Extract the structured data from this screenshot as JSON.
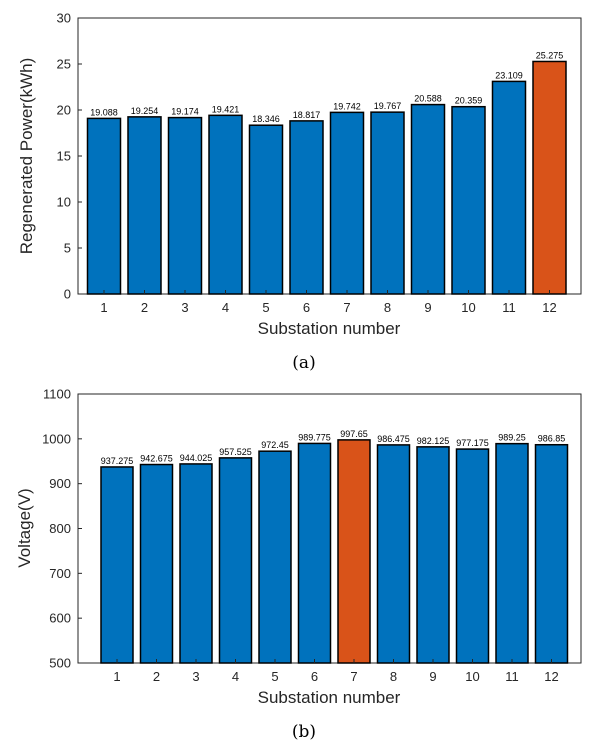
{
  "chart_data": [
    {
      "type": "bar",
      "caption": "(a)",
      "categories": [
        "1",
        "2",
        "3",
        "4",
        "5",
        "6",
        "7",
        "8",
        "9",
        "10",
        "11",
        "12"
      ],
      "values": [
        19.088,
        19.254,
        19.174,
        19.421,
        18.346,
        18.817,
        19.742,
        19.767,
        20.588,
        20.359,
        23.109,
        25.275
      ],
      "value_labels": [
        "19.088",
        "19.254",
        "19.174",
        "19.421",
        "18.346",
        "18.817",
        "19.742",
        "19.767",
        "20.588",
        "20.359",
        "23.109",
        "25.275"
      ],
      "highlight_index": 11,
      "xlabel": "Substation number",
      "ylabel": "Regenerated Power(kWh)",
      "ylim": [
        0,
        30
      ],
      "yticks": [
        0,
        5,
        10,
        15,
        20,
        25,
        30
      ],
      "grid": false,
      "colors": {
        "bar": "#0072bd",
        "highlight": "#d95319",
        "edge": "#000000",
        "axis": "#262626"
      }
    },
    {
      "type": "bar",
      "caption": "(b)",
      "categories": [
        "1",
        "2",
        "3",
        "4",
        "5",
        "6",
        "7",
        "8",
        "9",
        "10",
        "11",
        "12"
      ],
      "values": [
        937.275,
        942.675,
        944.025,
        957.525,
        972.45,
        989.775,
        997.65,
        986.475,
        982.125,
        977.175,
        989.25,
        986.85
      ],
      "value_labels": [
        "937.275",
        "942.675",
        "944.025",
        "957.525",
        "972.45",
        "989.775",
        "997.65",
        "986.475",
        "982.125",
        "977.175",
        "989.25",
        "986.85"
      ],
      "highlight_index": 6,
      "xlabel": "Substation number",
      "ylabel": "Voltage(V)",
      "ylim": [
        500,
        1100
      ],
      "yticks": [
        500,
        600,
        700,
        800,
        900,
        1000,
        1100
      ],
      "grid": false,
      "colors": {
        "bar": "#0072bd",
        "highlight": "#d95319",
        "edge": "#000000",
        "axis": "#262626"
      }
    }
  ]
}
